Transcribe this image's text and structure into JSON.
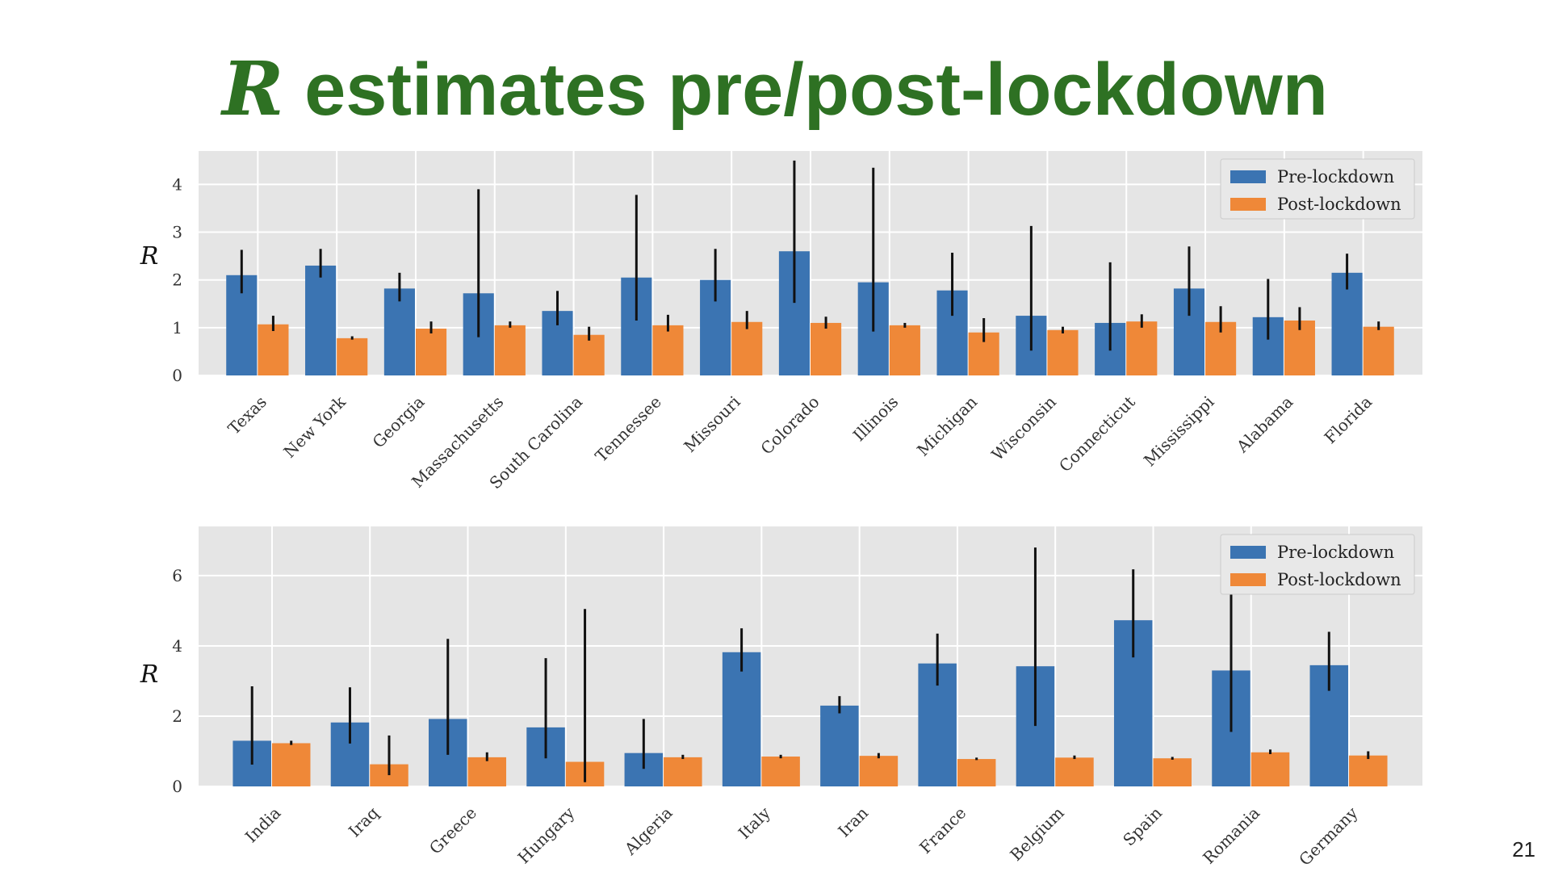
{
  "slide": {
    "title_symbol": "R",
    "title_text": " estimates pre/post-lockdown",
    "page_number": "21"
  },
  "chart_data": [
    {
      "type": "bar",
      "ylabel": "R",
      "ylim": [
        0,
        4.7
      ],
      "yticks": [
        0,
        1,
        2,
        3,
        4
      ],
      "grid": true,
      "legend": "top-right",
      "categories": [
        "Texas",
        "New York",
        "Georgia",
        "Massachusetts",
        "South Carolina",
        "Tennessee",
        "Missouri",
        "Colorado",
        "Illinois",
        "Michigan",
        "Wisconsin",
        "Connecticut",
        "Mississippi",
        "Alabama",
        "Florida"
      ],
      "series": [
        {
          "name": "Pre-lockdown",
          "color": "#3b74b2",
          "values": [
            2.1,
            2.3,
            1.82,
            1.72,
            1.35,
            2.05,
            2.0,
            2.6,
            1.95,
            1.78,
            1.25,
            1.1,
            1.82,
            1.22,
            2.15
          ],
          "err_low": [
            1.72,
            2.05,
            1.55,
            0.8,
            1.05,
            1.15,
            1.55,
            1.52,
            0.92,
            1.25,
            0.52,
            0.52,
            1.25,
            0.75,
            1.8
          ],
          "err_high": [
            2.63,
            2.65,
            2.15,
            3.9,
            1.77,
            3.78,
            2.65,
            4.5,
            4.35,
            2.57,
            3.13,
            2.37,
            2.7,
            2.02,
            2.55
          ]
        },
        {
          "name": "Post-lockdown",
          "color": "#ef8838",
          "values": [
            1.07,
            0.78,
            0.98,
            1.05,
            0.85,
            1.05,
            1.12,
            1.1,
            1.05,
            0.9,
            0.95,
            1.13,
            1.12,
            1.15,
            1.02
          ],
          "err_low": [
            0.93,
            0.75,
            0.88,
            1.0,
            0.73,
            0.92,
            0.97,
            0.98,
            1.0,
            0.7,
            0.88,
            1.0,
            0.9,
            0.95,
            0.95
          ],
          "err_high": [
            1.25,
            0.82,
            1.13,
            1.13,
            1.02,
            1.27,
            1.35,
            1.23,
            1.1,
            1.2,
            1.02,
            1.28,
            1.45,
            1.43,
            1.13
          ]
        }
      ]
    },
    {
      "type": "bar",
      "ylabel": "R",
      "ylim": [
        0,
        7.4
      ],
      "yticks": [
        0,
        2,
        4,
        6
      ],
      "grid": true,
      "legend": "top-right",
      "categories": [
        "India",
        "Iraq",
        "Greece",
        "Hungary",
        "Algeria",
        "Italy",
        "Iran",
        "France",
        "Belgium",
        "Spain",
        "Romania",
        "Germany"
      ],
      "series": [
        {
          "name": "Pre-lockdown",
          "color": "#3b74b2",
          "values": [
            1.3,
            1.82,
            1.92,
            1.68,
            0.95,
            3.82,
            2.3,
            3.5,
            3.42,
            4.73,
            3.3,
            3.45
          ],
          "err_low": [
            0.62,
            1.22,
            0.9,
            0.8,
            0.5,
            3.27,
            2.08,
            2.87,
            1.72,
            3.67,
            1.55,
            2.72
          ],
          "err_high": [
            2.85,
            2.82,
            4.2,
            3.65,
            1.92,
            4.5,
            2.57,
            4.35,
            6.8,
            6.18,
            7.15,
            4.4
          ]
        },
        {
          "name": "Post-lockdown",
          "color": "#ef8838",
          "values": [
            1.23,
            0.63,
            0.83,
            0.7,
            0.83,
            0.85,
            0.87,
            0.78,
            0.82,
            0.8,
            0.97,
            0.88
          ],
          "err_low": [
            1.18,
            0.32,
            0.72,
            0.12,
            0.78,
            0.8,
            0.8,
            0.75,
            0.78,
            0.76,
            0.92,
            0.78
          ],
          "err_high": [
            1.3,
            1.45,
            0.97,
            5.05,
            0.9,
            0.9,
            0.95,
            0.82,
            0.88,
            0.84,
            1.05,
            1.0
          ]
        }
      ]
    }
  ]
}
